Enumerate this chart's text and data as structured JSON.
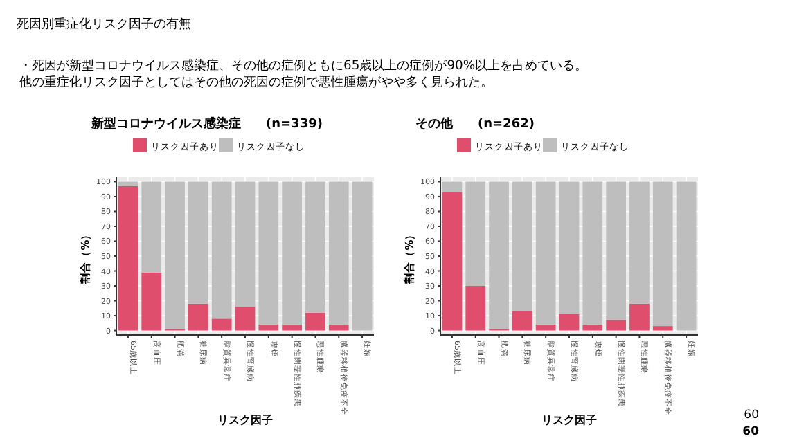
{
  "chart_data": [
    {
      "type": "bar",
      "title": "新型コロナウイルス感染症　　(n=339)",
      "annotations": [
        "死因別重症化リスク因子の有無",
        "・死因が新型コロナウイルス感染症、その他の症例ともに65歳以上の症例が90%以上を占めている。",
        "他の重症化リスク因子としてはその他の死因の症例で悪性腫瘍がやや多く見られた。",
        "60",
        "60"
      ],
      "xlabel": "リスク因子",
      "ylabel": "割合（%）",
      "stacked": true,
      "legend": "top",
      "grid": true,
      "ylim": [
        -3,
        103
      ],
      "yticks": [
        0,
        10,
        20,
        30,
        40,
        50,
        60,
        70,
        80,
        90,
        100
      ],
      "categories": [
        "65歳以上",
        "高血圧",
        "肥満",
        "糖尿病",
        "脂質異常症",
        "慢性腎臓病",
        "喫煙",
        "慢性閉塞性肺疾患",
        "悪性腫瘍",
        "臓器移植後免疫不全",
        "妊娠"
      ],
      "series": [
        {
          "name": "リスク因子あり",
          "color": "#df4f6d",
          "values": [
            97,
            39,
            1,
            18,
            8,
            16,
            4,
            4,
            12,
            4,
            0
          ]
        },
        {
          "name": "リスク因子なし",
          "color": "#bebebe",
          "values": [
            3,
            61,
            99,
            82,
            92,
            84,
            96,
            96,
            88,
            96,
            100
          ]
        }
      ]
    },
    {
      "type": "bar",
      "title": "その他　　(n=262)",
      "xlabel": "リスク因子",
      "ylabel": "割合（%）",
      "stacked": true,
      "legend": "top",
      "grid": true,
      "ylim": [
        -3,
        103
      ],
      "yticks": [
        0,
        10,
        20,
        30,
        40,
        50,
        60,
        70,
        80,
        90,
        100
      ],
      "categories": [
        "65歳以上",
        "高血圧",
        "肥満",
        "糖尿病",
        "脂質異常症",
        "慢性腎臓病",
        "喫煙",
        "慢性閉塞性肺疾患",
        "悪性腫瘍",
        "臓器移植後免疫不全",
        "妊娠"
      ],
      "series": [
        {
          "name": "リスク因子あり",
          "color": "#df4f6d",
          "values": [
            93,
            30,
            1,
            13,
            4,
            11,
            4,
            7,
            18,
            3,
            0
          ]
        },
        {
          "name": "リスク因子なし",
          "color": "#bebebe",
          "values": [
            7,
            70,
            99,
            87,
            96,
            89,
            96,
            93,
            82,
            97,
            100
          ]
        }
      ]
    }
  ]
}
